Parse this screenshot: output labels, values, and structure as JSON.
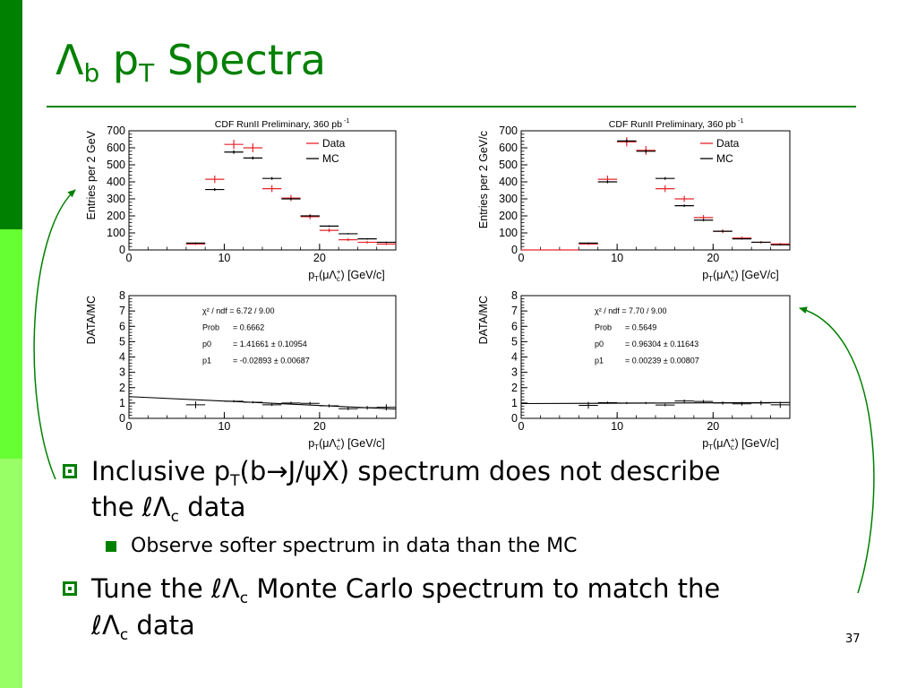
{
  "slide": {
    "title_main": "Λ",
    "title_sub_b": "b",
    "title_p": "p",
    "title_sub_T": "T",
    "title_rest": "Spectra",
    "page_number": "37",
    "accent_color": "#008000",
    "sidebar_colors": [
      "#008000",
      "#66ff33",
      "#99ff66"
    ]
  },
  "bullets": [
    {
      "part1": "Inclusive p",
      "sub1": "T",
      "part2": "(b",
      "arrow": "→",
      "part3": "J/",
      "psi": "ψ",
      "part4": "X) spectrum does not describe",
      "line2_pre": "the ℓΛ",
      "line2_sub": "c",
      "line2_post": " data"
    },
    {
      "line1_pre": "Tune the ℓΛ",
      "line1_sub": "c",
      "line1_post": " Monte Carlo spectrum to match the",
      "line2_pre": "ℓΛ",
      "line2_sub": "c",
      "line2_post": " data"
    }
  ],
  "subbullet": "Observe softer spectrum in data than the MC",
  "chart_data": [
    {
      "type": "scatter",
      "title": "CDF RunII Preliminary, 360 pb",
      "title_sup": "-1",
      "xlabel": "pT(μΛc+) [GeV/c]",
      "ylabel": "Entries per 2 GeV",
      "xlim": [
        0,
        28
      ],
      "ylim": [
        0,
        700
      ],
      "xticks": [
        0,
        10,
        20
      ],
      "yticks": [
        0,
        100,
        200,
        300,
        400,
        500,
        600,
        700
      ],
      "legend": [
        "Data",
        "MC"
      ],
      "legend_placement": "top-right",
      "series": [
        {
          "name": "Data",
          "color": "#e8242c",
          "x": [
            7,
            9,
            11,
            13,
            15,
            17,
            19,
            21,
            23,
            25,
            27
          ],
          "y": [
            35,
            415,
            620,
            600,
            360,
            305,
            195,
            115,
            60,
            45,
            35
          ],
          "xerr": 1,
          "yerr": [
            6,
            22,
            27,
            26,
            20,
            18,
            15,
            11,
            8,
            7,
            6
          ]
        },
        {
          "name": "MC",
          "color": "#000000",
          "x": [
            7,
            9,
            11,
            13,
            15,
            17,
            19,
            21,
            23,
            25,
            27
          ],
          "y": [
            40,
            355,
            575,
            540,
            420,
            300,
            200,
            140,
            95,
            65,
            45
          ],
          "xerr": 1,
          "yerr": [
            4,
            8,
            10,
            9,
            8,
            7,
            6,
            5,
            4,
            4,
            4
          ]
        }
      ]
    },
    {
      "type": "scatter",
      "title": "CDF RunII Preliminary, 360 pb",
      "title_sup": "-1",
      "xlabel": "pT(μΛc+) [GeV/c]",
      "ylabel": "Entries per 2 GeV/c",
      "xlim": [
        0,
        28
      ],
      "ylim": [
        0,
        700
      ],
      "xticks": [
        0,
        10,
        20
      ],
      "yticks": [
        0,
        100,
        200,
        300,
        400,
        500,
        600,
        700
      ],
      "legend": [
        "Data",
        "MC"
      ],
      "legend_placement": "top-right",
      "series": [
        {
          "name": "Data",
          "color": "#e8242c",
          "x": [
            1,
            3,
            5,
            7,
            9,
            11,
            13,
            15,
            17,
            19,
            21,
            23,
            25,
            27
          ],
          "y": [
            0,
            0,
            0,
            35,
            415,
            635,
            585,
            360,
            300,
            190,
            110,
            70,
            45,
            35
          ],
          "xerr": 1,
          "yerr": [
            0,
            0,
            0,
            6,
            22,
            27,
            26,
            20,
            18,
            15,
            11,
            8,
            7,
            6
          ]
        },
        {
          "name": "MC",
          "color": "#000000",
          "x": [
            7,
            9,
            11,
            13,
            15,
            17,
            19,
            21,
            23,
            25,
            27
          ],
          "y": [
            40,
            400,
            640,
            580,
            420,
            260,
            175,
            110,
            65,
            45,
            30
          ],
          "xerr": 1,
          "yerr": [
            4,
            8,
            10,
            9,
            8,
            7,
            6,
            5,
            4,
            4,
            4
          ]
        }
      ]
    },
    {
      "type": "scatter",
      "xlabel": "pT(μΛc+) [GeV/c]",
      "ylabel": "DATA/MC",
      "xlim": [
        0,
        28
      ],
      "ylim": [
        0,
        8
      ],
      "xticks": [
        0,
        10,
        20
      ],
      "yticks": [
        0,
        1,
        2,
        3,
        4,
        5,
        6,
        7,
        8
      ],
      "fit_stats": {
        "chi2_label": "χ² / ndf",
        "chi2": "6.72 / 9.00",
        "prob_label": "Prob",
        "prob": "0.6662",
        "p0_label": "p0",
        "p0": "1.41661 ± 0.10954",
        "p1_label": "p1",
        "p1": "-0.02893 ± 0.00687"
      },
      "fit_line": {
        "p0": 1.41661,
        "p1": -0.02893
      },
      "x": [
        7,
        11,
        13,
        15,
        17,
        19,
        21,
        23,
        25,
        27
      ],
      "y": [
        0.88,
        1.12,
        1.05,
        0.88,
        1.0,
        0.98,
        0.82,
        0.63,
        0.69,
        0.72
      ],
      "yerr": [
        0.22,
        0.07,
        0.07,
        0.07,
        0.08,
        0.1,
        0.1,
        0.1,
        0.12,
        0.2
      ]
    },
    {
      "type": "scatter",
      "xlabel": "pT(μΛc+) [GeV/c]",
      "ylabel": "DATA/MC",
      "xlim": [
        0,
        28
      ],
      "ylim": [
        0,
        8
      ],
      "xticks": [
        0,
        10,
        20
      ],
      "yticks": [
        0,
        1,
        2,
        3,
        4,
        5,
        6,
        7,
        8
      ],
      "fit_stats": {
        "chi2_label": "χ² / ndf",
        "chi2": "7.70 / 9.00",
        "prob_label": "Prob",
        "prob": "0.5649",
        "p0_label": "p0",
        "p0": "0.96304 ± 0.11643",
        "p1_label": "p1",
        "p1": "0.00239 ± 0.00807"
      },
      "fit_line": {
        "p0": 0.96304,
        "p1": 0.00239
      },
      "x": [
        7,
        9,
        11,
        13,
        15,
        17,
        19,
        21,
        23,
        25,
        27
      ],
      "y": [
        0.85,
        1.02,
        1.0,
        1.0,
        0.87,
        1.13,
        1.1,
        1.0,
        0.95,
        1.0,
        0.88
      ],
      "yerr": [
        0.22,
        0.07,
        0.07,
        0.07,
        0.08,
        0.1,
        0.1,
        0.1,
        0.12,
        0.15,
        0.2
      ]
    }
  ]
}
